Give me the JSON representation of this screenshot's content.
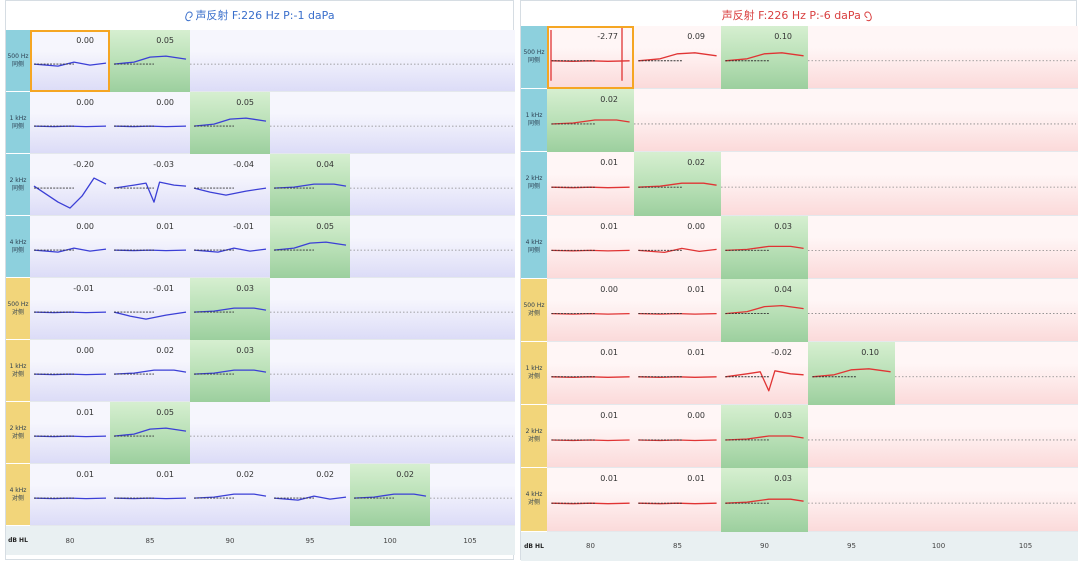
{
  "panels": {
    "left": {
      "title": "声反射  F:226 Hz P:-1 daPa",
      "accent": "#3a6fcb",
      "label_colors": {
        "ipsi": "#8dd0dd",
        "contra": "#f2d57a"
      },
      "row_bg": [
        "#f6f6fd",
        "#dcdcf7"
      ],
      "trace_color": "#3b3fd6",
      "rows": [
        {
          "label": "500 Hz\n同侧",
          "kind": "ipsi",
          "values": [
            "0.00",
            "0.05"
          ],
          "green": 1
        },
        {
          "label": "1 kHz\n同侧",
          "kind": "ipsi",
          "values": [
            "0.00",
            "0.00",
            "0.05"
          ],
          "green": 2
        },
        {
          "label": "2 kHz\n同侧",
          "kind": "ipsi",
          "values": [
            "-0.20",
            "-0.03",
            "-0.04",
            "0.04"
          ],
          "green": 3
        },
        {
          "label": "4 kHz\n同侧",
          "kind": "ipsi",
          "values": [
            "0.00",
            "0.01",
            "-0.01",
            "0.05"
          ],
          "green": 3
        },
        {
          "label": "500 Hz\n对侧",
          "kind": "contra",
          "values": [
            "-0.01",
            "-0.01",
            "0.03"
          ],
          "green": 2
        },
        {
          "label": "1 kHz\n对侧",
          "kind": "contra",
          "values": [
            "0.00",
            "0.02",
            "0.03"
          ],
          "green": 2
        },
        {
          "label": "2 kHz\n对侧",
          "kind": "contra",
          "values": [
            "0.01",
            "0.05"
          ],
          "green": 1
        },
        {
          "label": "4 kHz\n对侧",
          "kind": "contra",
          "values": [
            "0.01",
            "0.01",
            "0.02",
            "0.02",
            "0.02"
          ],
          "green": 4
        }
      ]
    },
    "right": {
      "title": "声反射  F:226 Hz P:-6 daPa",
      "accent": "#d94040",
      "label_colors": {
        "ipsi": "#8dd0dd",
        "contra": "#f2d57a"
      },
      "row_bg": [
        "#fff6f6",
        "#fbdada"
      ],
      "trace_color": "#e03434",
      "rows": [
        {
          "label": "500 Hz\n同侧",
          "kind": "ipsi",
          "values": [
            "-2.77",
            "0.09",
            "0.10"
          ],
          "green": 2
        },
        {
          "label": "1 kHz\n同侧",
          "kind": "ipsi",
          "values": [
            "0.02"
          ],
          "green": 0
        },
        {
          "label": "2 kHz\n同侧",
          "kind": "ipsi",
          "values": [
            "0.01",
            "0.02"
          ],
          "green": 1
        },
        {
          "label": "4 kHz\n同侧",
          "kind": "ipsi",
          "values": [
            "0.01",
            "0.00",
            "0.03"
          ],
          "green": 2
        },
        {
          "label": "500 Hz\n对侧",
          "kind": "contra",
          "values": [
            "0.00",
            "0.01",
            "0.04"
          ],
          "green": 2
        },
        {
          "label": "1 kHz\n对侧",
          "kind": "contra",
          "values": [
            "0.01",
            "0.01",
            "-0.02",
            "0.10"
          ],
          "green": 3
        },
        {
          "label": "2 kHz\n对侧",
          "kind": "contra",
          "values": [
            "0.01",
            "0.00",
            "0.03"
          ],
          "green": 2
        },
        {
          "label": "4 kHz\n对侧",
          "kind": "contra",
          "values": [
            "0.01",
            "0.01",
            "0.03"
          ],
          "green": 2
        }
      ]
    }
  },
  "footer": {
    "hl_label": "dB HL",
    "levels": [
      "80",
      "85",
      "90",
      "95",
      "100",
      "105"
    ]
  },
  "colors": {
    "selection": "#f5a623",
    "baseline_dash": "#333333",
    "dotted_line": "#888888"
  },
  "icons": {
    "left_title": "ear-icon",
    "right_title": "ear-icon"
  }
}
